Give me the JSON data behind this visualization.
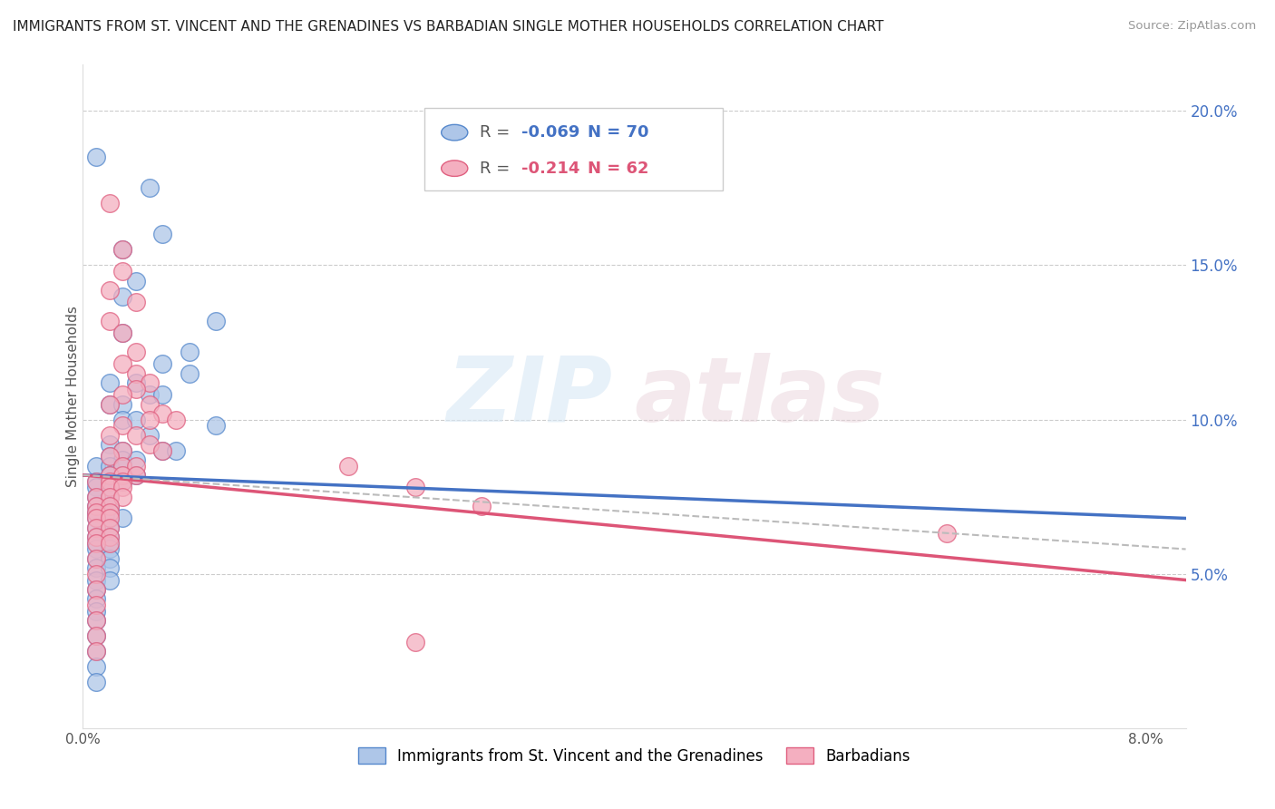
{
  "title": "IMMIGRANTS FROM ST. VINCENT AND THE GRENADINES VS BARBADIAN SINGLE MOTHER HOUSEHOLDS CORRELATION CHART",
  "source": "Source: ZipAtlas.com",
  "ylabel": "Single Mother Households",
  "ylabel_right_ticks": [
    "20.0%",
    "15.0%",
    "10.0%",
    "5.0%"
  ],
  "ylabel_right_vals": [
    0.2,
    0.15,
    0.1,
    0.05
  ],
  "ylim": [
    0.0,
    0.215
  ],
  "xlim": [
    0.0,
    0.083
  ],
  "legend_r1_prefix": "R = ",
  "legend_r1_val": "-0.069",
  "legend_n1": "N = 70",
  "legend_r2_prefix": "R = ",
  "legend_r2_val": "-0.214",
  "legend_n2": "N = 62",
  "color_blue": "#aec6e8",
  "color_pink": "#f4afc0",
  "color_blue_dark": "#5588cc",
  "color_pink_dark": "#e06080",
  "trendline_blue": "#4472c4",
  "trendline_pink": "#dd5577",
  "trendline_dashed": "#bbbbbb",
  "watermark_zip": "ZIP",
  "watermark_atlas": "atlas",
  "bottom_label_blue": "Immigrants from St. Vincent and the Grenadines",
  "bottom_label_pink": "Barbadians",
  "scatter_blue": [
    [
      0.001,
      0.185
    ],
    [
      0.005,
      0.175
    ],
    [
      0.006,
      0.16
    ],
    [
      0.003,
      0.155
    ],
    [
      0.004,
      0.145
    ],
    [
      0.003,
      0.14
    ],
    [
      0.01,
      0.132
    ],
    [
      0.003,
      0.128
    ],
    [
      0.008,
      0.122
    ],
    [
      0.006,
      0.118
    ],
    [
      0.008,
      0.115
    ],
    [
      0.004,
      0.112
    ],
    [
      0.002,
      0.112
    ],
    [
      0.005,
      0.108
    ],
    [
      0.006,
      0.108
    ],
    [
      0.002,
      0.105
    ],
    [
      0.003,
      0.105
    ],
    [
      0.003,
      0.1
    ],
    [
      0.004,
      0.1
    ],
    [
      0.01,
      0.098
    ],
    [
      0.005,
      0.095
    ],
    [
      0.002,
      0.092
    ],
    [
      0.003,
      0.09
    ],
    [
      0.006,
      0.09
    ],
    [
      0.007,
      0.09
    ],
    [
      0.002,
      0.088
    ],
    [
      0.003,
      0.087
    ],
    [
      0.004,
      0.087
    ],
    [
      0.001,
      0.085
    ],
    [
      0.002,
      0.085
    ],
    [
      0.003,
      0.085
    ],
    [
      0.002,
      0.082
    ],
    [
      0.003,
      0.082
    ],
    [
      0.004,
      0.082
    ],
    [
      0.001,
      0.08
    ],
    [
      0.002,
      0.08
    ],
    [
      0.003,
      0.08
    ],
    [
      0.001,
      0.078
    ],
    [
      0.002,
      0.078
    ],
    [
      0.001,
      0.075
    ],
    [
      0.002,
      0.075
    ],
    [
      0.001,
      0.072
    ],
    [
      0.002,
      0.072
    ],
    [
      0.001,
      0.07
    ],
    [
      0.002,
      0.07
    ],
    [
      0.001,
      0.068
    ],
    [
      0.002,
      0.068
    ],
    [
      0.003,
      0.068
    ],
    [
      0.001,
      0.065
    ],
    [
      0.002,
      0.065
    ],
    [
      0.001,
      0.062
    ],
    [
      0.002,
      0.062
    ],
    [
      0.001,
      0.06
    ],
    [
      0.002,
      0.06
    ],
    [
      0.001,
      0.058
    ],
    [
      0.002,
      0.058
    ],
    [
      0.001,
      0.055
    ],
    [
      0.002,
      0.055
    ],
    [
      0.001,
      0.052
    ],
    [
      0.002,
      0.052
    ],
    [
      0.001,
      0.048
    ],
    [
      0.002,
      0.048
    ],
    [
      0.001,
      0.045
    ],
    [
      0.001,
      0.042
    ],
    [
      0.001,
      0.038
    ],
    [
      0.001,
      0.035
    ],
    [
      0.001,
      0.03
    ],
    [
      0.001,
      0.025
    ],
    [
      0.001,
      0.02
    ],
    [
      0.001,
      0.015
    ]
  ],
  "scatter_pink": [
    [
      0.002,
      0.17
    ],
    [
      0.003,
      0.155
    ],
    [
      0.003,
      0.148
    ],
    [
      0.002,
      0.142
    ],
    [
      0.004,
      0.138
    ],
    [
      0.002,
      0.132
    ],
    [
      0.003,
      0.128
    ],
    [
      0.004,
      0.122
    ],
    [
      0.003,
      0.118
    ],
    [
      0.004,
      0.115
    ],
    [
      0.005,
      0.112
    ],
    [
      0.004,
      0.11
    ],
    [
      0.003,
      0.108
    ],
    [
      0.002,
      0.105
    ],
    [
      0.005,
      0.105
    ],
    [
      0.006,
      0.102
    ],
    [
      0.005,
      0.1
    ],
    [
      0.007,
      0.1
    ],
    [
      0.003,
      0.098
    ],
    [
      0.002,
      0.095
    ],
    [
      0.004,
      0.095
    ],
    [
      0.005,
      0.092
    ],
    [
      0.003,
      0.09
    ],
    [
      0.006,
      0.09
    ],
    [
      0.002,
      0.088
    ],
    [
      0.003,
      0.085
    ],
    [
      0.004,
      0.085
    ],
    [
      0.002,
      0.082
    ],
    [
      0.003,
      0.082
    ],
    [
      0.004,
      0.082
    ],
    [
      0.001,
      0.08
    ],
    [
      0.002,
      0.08
    ],
    [
      0.003,
      0.08
    ],
    [
      0.002,
      0.078
    ],
    [
      0.003,
      0.078
    ],
    [
      0.001,
      0.075
    ],
    [
      0.002,
      0.075
    ],
    [
      0.003,
      0.075
    ],
    [
      0.001,
      0.072
    ],
    [
      0.002,
      0.072
    ],
    [
      0.001,
      0.07
    ],
    [
      0.002,
      0.07
    ],
    [
      0.001,
      0.068
    ],
    [
      0.002,
      0.068
    ],
    [
      0.001,
      0.065
    ],
    [
      0.002,
      0.065
    ],
    [
      0.001,
      0.062
    ],
    [
      0.002,
      0.062
    ],
    [
      0.001,
      0.06
    ],
    [
      0.002,
      0.06
    ],
    [
      0.001,
      0.055
    ],
    [
      0.001,
      0.05
    ],
    [
      0.001,
      0.045
    ],
    [
      0.001,
      0.04
    ],
    [
      0.001,
      0.035
    ],
    [
      0.001,
      0.03
    ],
    [
      0.001,
      0.025
    ],
    [
      0.02,
      0.085
    ],
    [
      0.025,
      0.078
    ],
    [
      0.03,
      0.072
    ],
    [
      0.065,
      0.063
    ],
    [
      0.025,
      0.028
    ]
  ]
}
